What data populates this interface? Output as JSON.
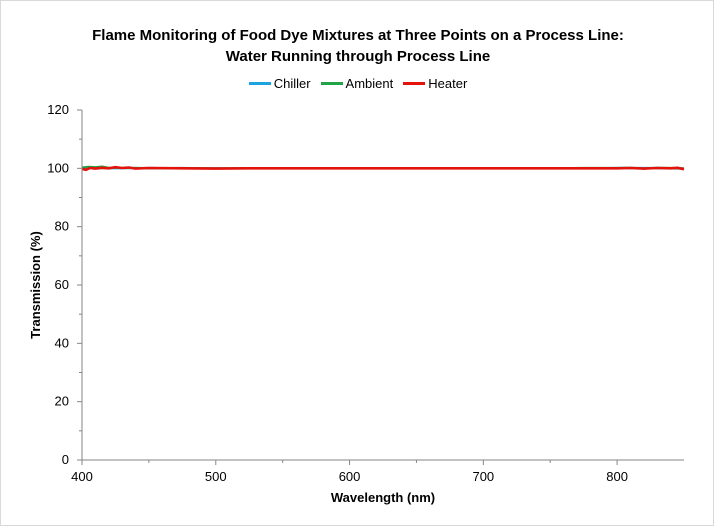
{
  "chart_data": {
    "type": "line",
    "title_lines": [
      "Flame Monitoring of Food Dye Mixtures at Three Points on a Process Line:",
      "Water Running through Process Line"
    ],
    "xlabel": "Wavelength (nm)",
    "ylabel": "Transmission (%)",
    "xlim": [
      400,
      850
    ],
    "ylim": [
      0,
      120
    ],
    "x_ticks": [
      400,
      500,
      600,
      700,
      800
    ],
    "y_ticks": [
      0,
      20,
      40,
      60,
      80,
      100,
      120
    ],
    "grid": false,
    "legend_position": "top",
    "series": [
      {
        "name": "Chiller",
        "color": "#1ca3e0",
        "x": [
          400,
          425,
          450,
          475,
          500,
          525,
          550,
          575,
          600,
          625,
          650,
          675,
          700,
          725,
          750,
          775,
          800,
          825,
          850
        ],
        "y": [
          100.2,
          100.0,
          100.1,
          100.0,
          100.0,
          100.0,
          100.0,
          100.0,
          100.0,
          100.0,
          100.0,
          100.0,
          100.0,
          100.0,
          100.0,
          100.0,
          100.1,
          100.1,
          99.9
        ]
      },
      {
        "name": "Ambient",
        "color": "#21a34a",
        "x": [
          400,
          405,
          410,
          415,
          420,
          425,
          430,
          440,
          450,
          475,
          500,
          525,
          550,
          575,
          600,
          625,
          650,
          675,
          700,
          725,
          750,
          775,
          800,
          810,
          820,
          830,
          840,
          850
        ],
        "y": [
          100.3,
          100.5,
          100.4,
          100.6,
          100.2,
          100.3,
          100.1,
          100.2,
          100.0,
          100.1,
          100.0,
          100.0,
          100.0,
          100.0,
          100.0,
          100.0,
          100.0,
          100.0,
          100.0,
          100.0,
          100.0,
          100.1,
          100.1,
          100.2,
          99.9,
          100.2,
          100.1,
          100.0
        ]
      },
      {
        "name": "Heater",
        "color": "#e3120b",
        "x": [
          400,
          403,
          406,
          410,
          415,
          420,
          425,
          430,
          435,
          440,
          450,
          475,
          500,
          525,
          550,
          575,
          600,
          625,
          650,
          675,
          700,
          725,
          750,
          775,
          800,
          810,
          820,
          830,
          840,
          845,
          850
        ],
        "y": [
          99.8,
          99.5,
          100.1,
          99.9,
          100.2,
          100.0,
          100.4,
          100.1,
          100.3,
          99.9,
          100.1,
          100.0,
          99.9,
          100.0,
          100.0,
          100.0,
          100.0,
          100.0,
          100.0,
          100.0,
          100.0,
          100.0,
          100.0,
          100.0,
          100.0,
          100.1,
          99.9,
          100.1,
          100.0,
          100.2,
          99.7
        ]
      }
    ]
  }
}
